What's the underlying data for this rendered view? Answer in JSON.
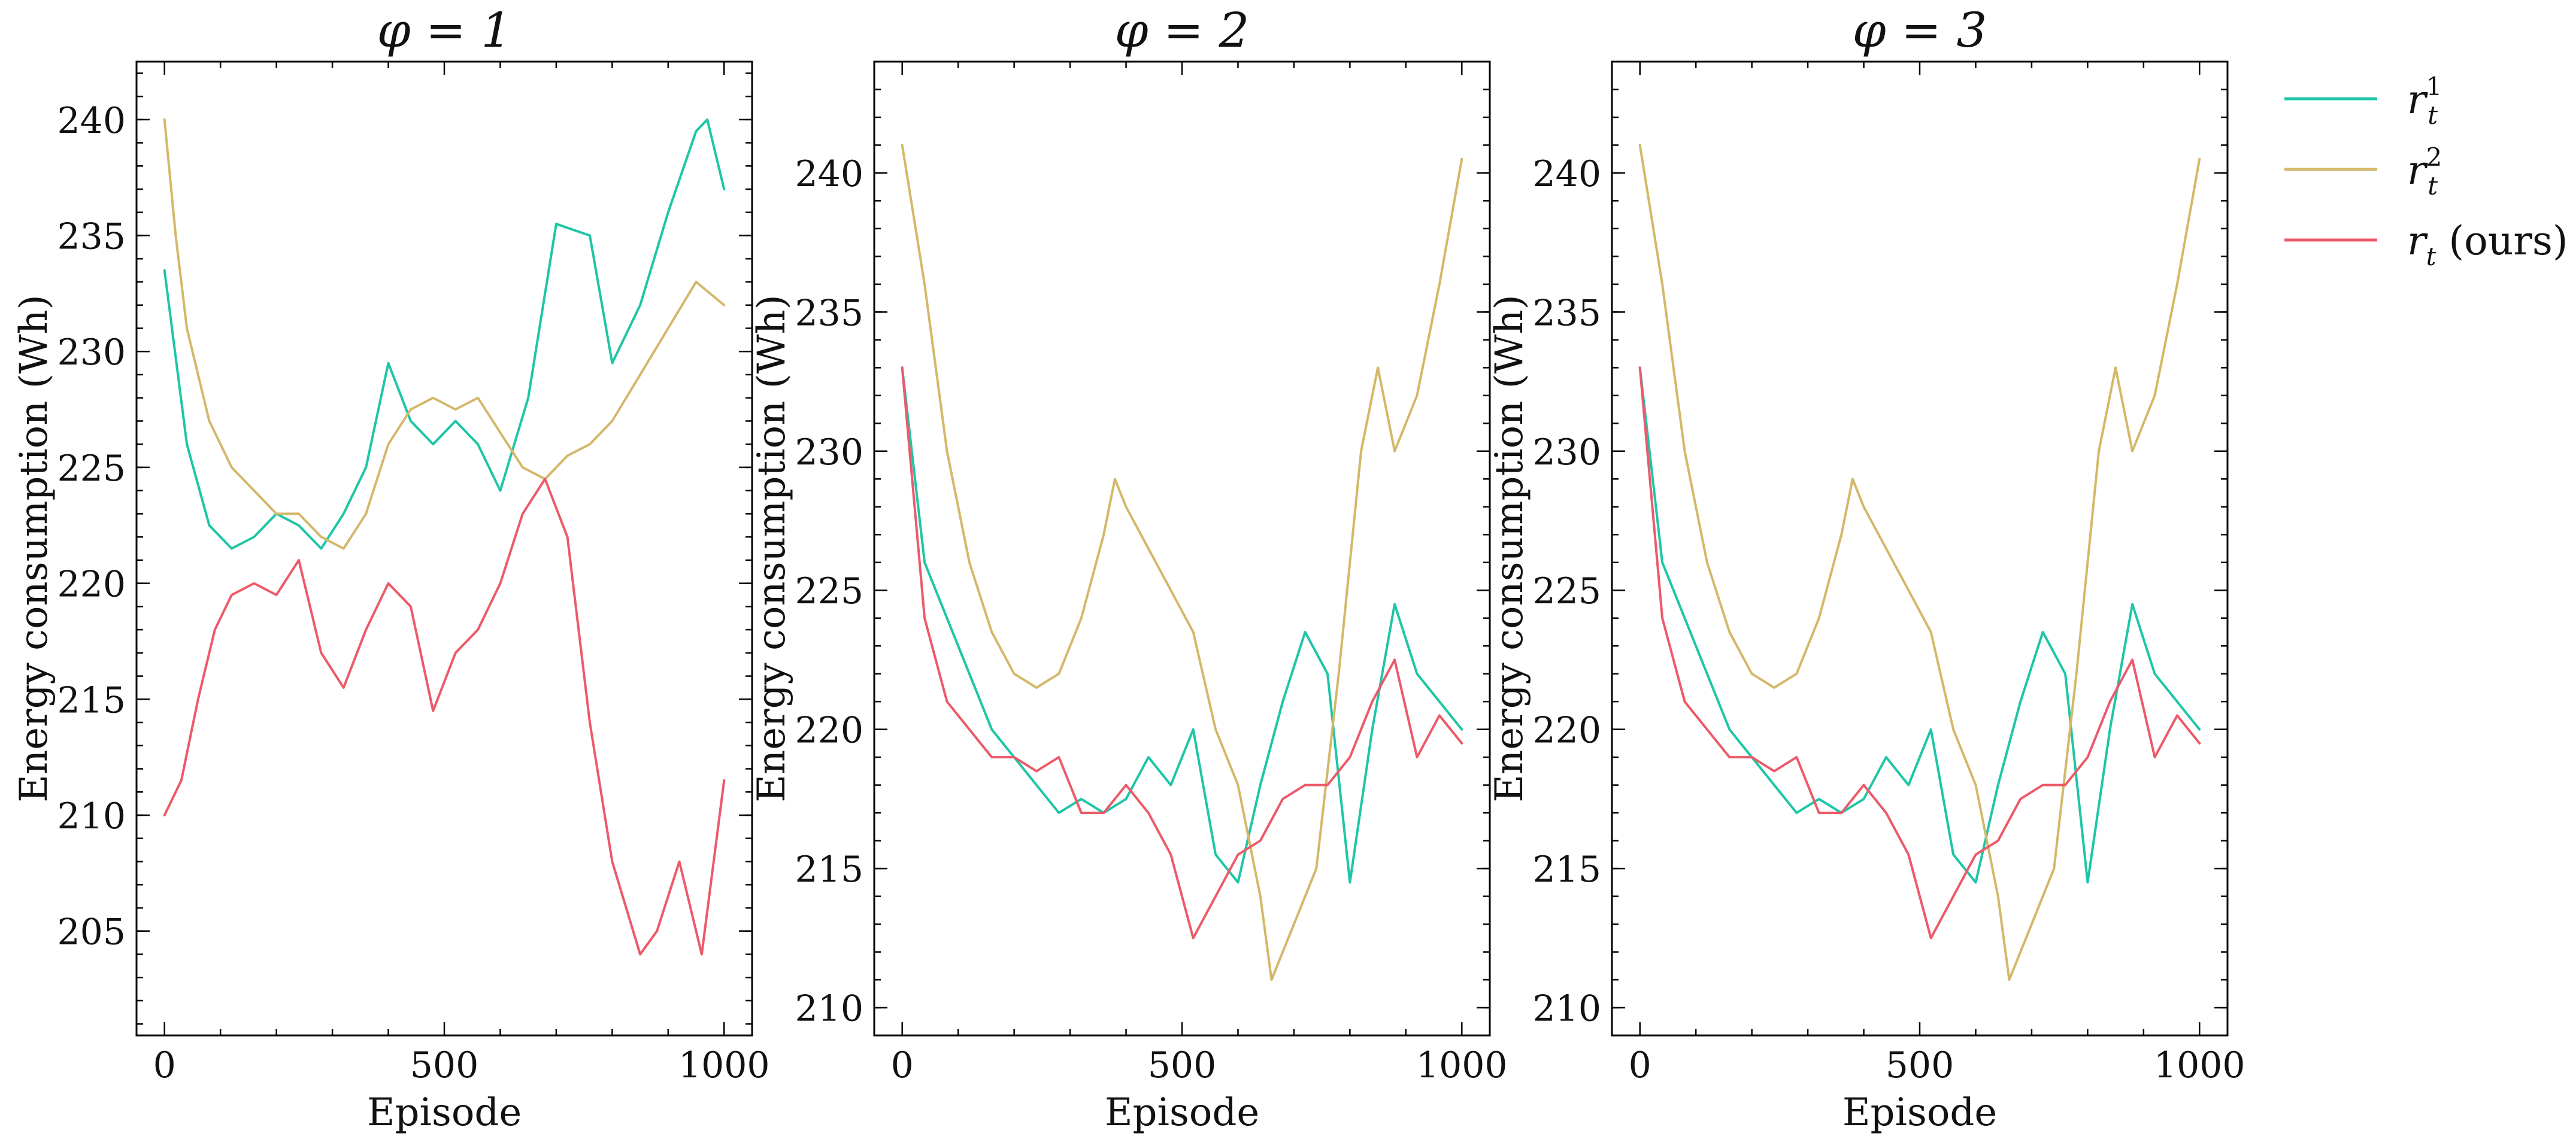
{
  "chart_data": [
    {
      "type": "line",
      "title": "φ = 1",
      "xlabel": "Episode",
      "ylabel": "Energy consumption (Wh)",
      "xlim": [
        -50,
        1050
      ],
      "ylim": [
        200.5,
        242.5
      ],
      "xticks": [
        0,
        500,
        1000
      ],
      "yticks": [
        205,
        210,
        215,
        220,
        225,
        230,
        235,
        240
      ],
      "series": [
        {
          "name": "r_t^1",
          "color": "#1dc6a6",
          "x": [
            0,
            40,
            80,
            120,
            160,
            200,
            240,
            280,
            320,
            360,
            400,
            440,
            480,
            520,
            560,
            600,
            650,
            700,
            760,
            800,
            850,
            900,
            950,
            970,
            1000
          ],
          "y": [
            233.5,
            226,
            222.5,
            221.5,
            222,
            223,
            222.5,
            221.5,
            223,
            225,
            229.5,
            227,
            226,
            227,
            226,
            224,
            228,
            235.5,
            235,
            229.5,
            232,
            236,
            239.5,
            240,
            237
          ]
        },
        {
          "name": "r_t^2",
          "color": "#d4b86a",
          "x": [
            0,
            20,
            40,
            80,
            120,
            160,
            200,
            240,
            280,
            320,
            360,
            400,
            440,
            480,
            520,
            560,
            600,
            640,
            680,
            720,
            760,
            800,
            850,
            900,
            950,
            1000
          ],
          "y": [
            240,
            235,
            231,
            227,
            225,
            224,
            223,
            223,
            222,
            221.5,
            223,
            226,
            227.5,
            228,
            227.5,
            228,
            226.5,
            225,
            224.5,
            225.5,
            226,
            227,
            229,
            231,
            233,
            232
          ]
        },
        {
          "name": "r_t (ours)",
          "color": "#ec5a6a",
          "x": [
            0,
            30,
            60,
            90,
            120,
            160,
            200,
            240,
            280,
            320,
            360,
            400,
            440,
            480,
            520,
            560,
            600,
            640,
            680,
            720,
            760,
            800,
            850,
            880,
            920,
            960,
            1000
          ],
          "y": [
            210,
            211.5,
            215,
            218,
            219.5,
            220,
            219.5,
            221,
            217,
            215.5,
            218,
            220,
            219,
            214.5,
            217,
            218,
            220,
            223,
            224.5,
            222,
            214,
            208,
            204,
            205,
            208,
            204,
            211.5
          ]
        }
      ]
    },
    {
      "type": "line",
      "title": "φ = 2",
      "xlabel": "Episode",
      "ylabel": "Energy consumption (Wh)",
      "xlim": [
        -50,
        1050
      ],
      "ylim": [
        209,
        244
      ],
      "xticks": [
        0,
        500,
        1000
      ],
      "yticks": [
        210,
        215,
        220,
        225,
        230,
        235,
        240
      ],
      "series": [
        {
          "name": "r_t^1",
          "color": "#1dc6a6",
          "x": [
            0,
            40,
            80,
            120,
            160,
            200,
            240,
            280,
            320,
            360,
            400,
            440,
            480,
            520,
            560,
            600,
            640,
            680,
            720,
            760,
            800,
            840,
            880,
            920,
            960,
            1000
          ],
          "y": [
            233,
            226,
            224,
            222,
            220,
            219,
            218,
            217,
            217.5,
            217,
            217.5,
            219,
            218,
            220,
            215.5,
            214.5,
            218,
            221,
            223.5,
            222,
            214.5,
            220,
            224.5,
            222,
            221,
            220
          ]
        },
        {
          "name": "r_t^2",
          "color": "#d4b86a",
          "x": [
            0,
            40,
            80,
            120,
            160,
            200,
            240,
            280,
            320,
            360,
            380,
            400,
            440,
            480,
            520,
            560,
            600,
            640,
            660,
            700,
            740,
            780,
            820,
            850,
            880,
            920,
            960,
            1000
          ],
          "y": [
            241,
            236,
            230,
            226,
            223.5,
            222,
            221.5,
            222,
            224,
            227,
            229,
            228,
            226.5,
            225,
            223.5,
            220,
            218,
            214,
            211,
            213,
            215,
            222,
            230,
            233,
            230,
            232,
            236,
            240.5
          ]
        },
        {
          "name": "r_t (ours)",
          "color": "#ec5a6a",
          "x": [
            0,
            40,
            80,
            120,
            160,
            200,
            240,
            280,
            320,
            360,
            400,
            440,
            480,
            520,
            560,
            600,
            640,
            680,
            720,
            760,
            800,
            840,
            880,
            920,
            960,
            1000
          ],
          "y": [
            233,
            224,
            221,
            220,
            219,
            219,
            218.5,
            219,
            217,
            217,
            218,
            217,
            215.5,
            212.5,
            214,
            215.5,
            216,
            217.5,
            218,
            218,
            219,
            221,
            222.5,
            219,
            220.5,
            219.5
          ]
        }
      ]
    },
    {
      "type": "line",
      "title": "φ = 3",
      "xlabel": "Episode",
      "ylabel": "Energy consumption (Wh)",
      "xlim": [
        -50,
        1050
      ],
      "ylim": [
        209,
        244
      ],
      "xticks": [
        0,
        500,
        1000
      ],
      "yticks": [
        210,
        215,
        220,
        225,
        230,
        235,
        240
      ],
      "series": [
        {
          "name": "r_t^1",
          "color": "#1dc6a6",
          "x": [
            0,
            40,
            80,
            120,
            160,
            200,
            240,
            280,
            320,
            360,
            400,
            440,
            480,
            520,
            560,
            600,
            640,
            680,
            720,
            760,
            800,
            840,
            880,
            920,
            960,
            1000
          ],
          "y": [
            233,
            226,
            224,
            222,
            220,
            219,
            218,
            217,
            217.5,
            217,
            217.5,
            219,
            218,
            220,
            215.5,
            214.5,
            218,
            221,
            223.5,
            222,
            214.5,
            220,
            224.5,
            222,
            221,
            220
          ]
        },
        {
          "name": "r_t^2",
          "color": "#d4b86a",
          "x": [
            0,
            40,
            80,
            120,
            160,
            200,
            240,
            280,
            320,
            360,
            380,
            400,
            440,
            480,
            520,
            560,
            600,
            640,
            660,
            700,
            740,
            780,
            820,
            850,
            880,
            920,
            960,
            1000
          ],
          "y": [
            241,
            236,
            230,
            226,
            223.5,
            222,
            221.5,
            222,
            224,
            227,
            229,
            228,
            226.5,
            225,
            223.5,
            220,
            218,
            214,
            211,
            213,
            215,
            222,
            230,
            233,
            230,
            232,
            236,
            240.5
          ]
        },
        {
          "name": "r_t (ours)",
          "color": "#ec5a6a",
          "x": [
            0,
            40,
            80,
            120,
            160,
            200,
            240,
            280,
            320,
            360,
            400,
            440,
            480,
            520,
            560,
            600,
            640,
            680,
            720,
            760,
            800,
            840,
            880,
            920,
            960,
            1000
          ],
          "y": [
            233,
            224,
            221,
            220,
            219,
            219,
            218.5,
            219,
            217,
            217,
            218,
            217,
            215.5,
            212.5,
            214,
            215.5,
            216,
            217.5,
            218,
            218,
            219,
            221,
            222.5,
            219,
            220.5,
            219.5
          ]
        }
      ]
    }
  ],
  "legend": {
    "placement": "right",
    "items": [
      {
        "symbol": "r",
        "sub": "t",
        "sup": "1",
        "suffix": "",
        "color": "#1dc6a6"
      },
      {
        "symbol": "r",
        "sub": "t",
        "sup": "2",
        "suffix": "",
        "color": "#d4b86a"
      },
      {
        "symbol": "r",
        "sub": "t",
        "sup": "",
        "suffix": " (ours)",
        "color": "#ec5a6a"
      }
    ]
  }
}
